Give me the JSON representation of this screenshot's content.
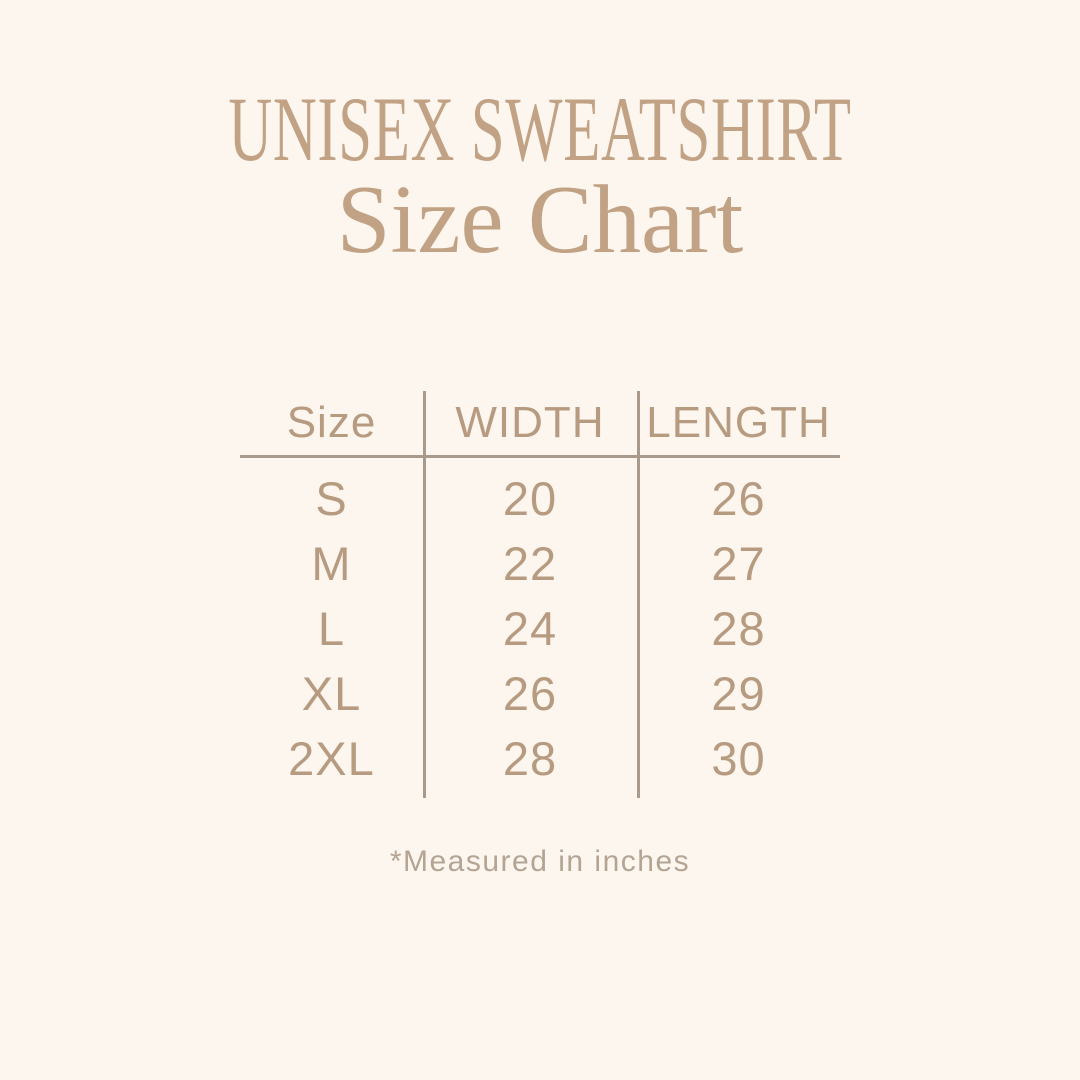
{
  "theme": {
    "background": "#fdf6ef",
    "title_color": "#c2a284",
    "table_text_color": "#b79b80",
    "line_color": "#a89a8c",
    "footnote_color": "#b3a494"
  },
  "header": {
    "title": "UNISEX SWEATSHIRT",
    "subtitle": "Size Chart"
  },
  "size_table": {
    "columns": [
      "Size",
      "WIDTH",
      "LENGTH"
    ],
    "rows": [
      {
        "size": "S",
        "width": "20",
        "length": "26"
      },
      {
        "size": "M",
        "width": "22",
        "length": "27"
      },
      {
        "size": "L",
        "width": "24",
        "length": "28"
      },
      {
        "size": "XL",
        "width": "26",
        "length": "29"
      },
      {
        "size": "2XL",
        "width": "28",
        "length": "30"
      }
    ]
  },
  "footnote": {
    "text": "*Measured in inches"
  },
  "chart_data": {
    "type": "table",
    "title": "UNISEX SWEATSHIRT Size Chart",
    "columns": [
      "Size",
      "WIDTH",
      "LENGTH"
    ],
    "rows": [
      [
        "S",
        20,
        26
      ],
      [
        "M",
        22,
        27
      ],
      [
        "L",
        24,
        28
      ],
      [
        "XL",
        26,
        29
      ],
      [
        "2XL",
        28,
        30
      ]
    ],
    "units": "inches",
    "footnote": "*Measured in inches"
  }
}
